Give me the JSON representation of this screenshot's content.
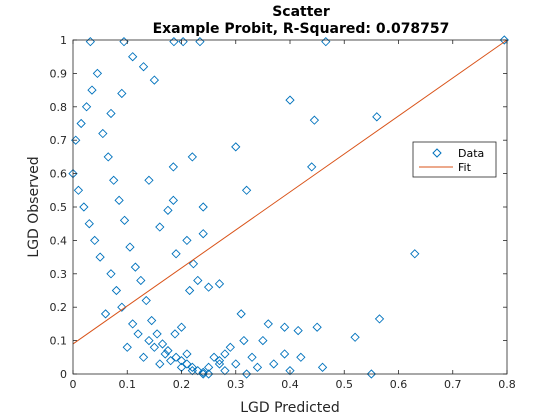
{
  "chart_data": {
    "type": "scatter",
    "title": "Scatter",
    "subtitle": "Example Probit, R-Squared: 0.078757",
    "xlabel": "LGD Predicted",
    "ylabel": "LGD Observed",
    "xlim": [
      0,
      0.8
    ],
    "ylim": [
      0,
      1
    ],
    "xticks": [
      "0",
      "0.1",
      "0.2",
      "0.3",
      "0.4",
      "0.5",
      "0.6",
      "0.7",
      "0.8"
    ],
    "yticks": [
      "0",
      "0.1",
      "0.2",
      "0.3",
      "0.4",
      "0.5",
      "0.6",
      "0.7",
      "0.8",
      "0.9",
      "1"
    ],
    "grid": false,
    "legend": {
      "position": "right",
      "entries": [
        "Data",
        "Fit"
      ]
    },
    "colors": {
      "data": "#0072bd",
      "fit": "#d95319"
    },
    "series": [
      {
        "name": "Data",
        "marker": "diamond",
        "x": [
          0.795,
          0.032,
          0.094,
          0.186,
          0.203,
          0.234,
          0.466,
          0.63,
          0.56,
          0.445,
          0.4,
          0.44,
          0.52,
          0.565,
          0.415,
          0.39,
          0.27,
          0.215,
          0.24,
          0.185,
          0.36,
          0.32,
          0.24,
          0.33,
          0.175,
          0.3,
          0.25,
          0.21,
          0.19,
          0.222,
          0.29,
          0.21,
          0.16,
          0.27,
          0.315,
          0.28,
          0.3,
          0.14,
          0.188,
          0.2,
          0.185,
          0.22,
          0.25,
          0.23,
          0.31,
          0.35,
          0.39,
          0.42,
          0.45,
          0.46,
          0.55,
          0.37,
          0.4,
          0.32,
          0.34,
          0.28,
          0.26,
          0.27,
          0.24,
          0.22,
          0.2,
          0.18,
          0.17,
          0.16,
          0.15,
          0.14,
          0.13,
          0.12,
          0.11,
          0.1,
          0.09,
          0.08,
          0.07,
          0.06,
          0.05,
          0.04,
          0.03,
          0.02,
          0.01,
          0.0,
          0.005,
          0.015,
          0.025,
          0.035,
          0.045,
          0.055,
          0.065,
          0.075,
          0.085,
          0.095,
          0.105,
          0.115,
          0.125,
          0.135,
          0.145,
          0.155,
          0.165,
          0.175,
          0.19,
          0.2,
          0.21,
          0.22,
          0.23,
          0.24,
          0.25,
          0.15,
          0.13,
          0.11,
          0.09,
          0.07
        ],
        "y": [
          1.0,
          0.995,
          0.995,
          0.995,
          0.995,
          0.995,
          0.995,
          0.36,
          0.77,
          0.76,
          0.82,
          0.62,
          0.11,
          0.165,
          0.13,
          0.14,
          0.27,
          0.25,
          0.42,
          0.52,
          0.15,
          0.55,
          0.5,
          0.05,
          0.49,
          0.68,
          0.26,
          0.4,
          0.36,
          0.33,
          0.08,
          0.06,
          0.44,
          0.04,
          0.1,
          0.06,
          0.03,
          0.58,
          0.12,
          0.14,
          0.62,
          0.65,
          0.02,
          0.28,
          0.18,
          0.1,
          0.06,
          0.05,
          0.14,
          0.02,
          0.0,
          0.03,
          0.01,
          0.0,
          0.02,
          0.01,
          0.05,
          0.03,
          0.0,
          0.01,
          0.02,
          0.04,
          0.06,
          0.03,
          0.08,
          0.1,
          0.05,
          0.12,
          0.15,
          0.08,
          0.2,
          0.25,
          0.3,
          0.18,
          0.35,
          0.4,
          0.45,
          0.5,
          0.55,
          0.6,
          0.7,
          0.75,
          0.8,
          0.85,
          0.9,
          0.72,
          0.65,
          0.58,
          0.52,
          0.46,
          0.38,
          0.32,
          0.28,
          0.22,
          0.16,
          0.12,
          0.09,
          0.07,
          0.05,
          0.04,
          0.03,
          0.02,
          0.01,
          0.005,
          0.0,
          0.88,
          0.92,
          0.95,
          0.84,
          0.78
        ]
      },
      {
        "name": "Fit",
        "type": "line",
        "x": [
          0,
          0.8
        ],
        "y": [
          0.09,
          1.0
        ]
      }
    ]
  }
}
